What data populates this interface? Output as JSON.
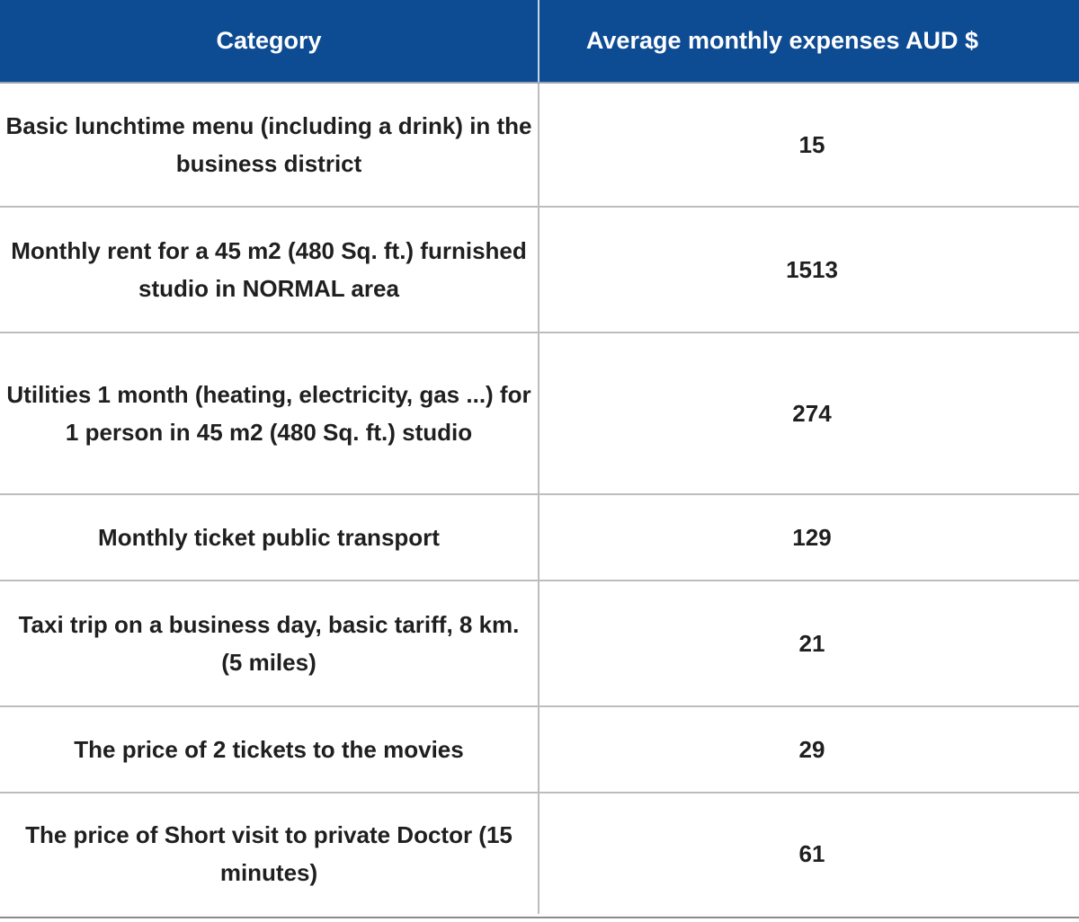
{
  "table": {
    "headers": [
      "Category",
      "Average monthly expenses AUD $"
    ],
    "rows": [
      {
        "category": "Basic lunchtime menu (including a drink) in the business district",
        "value": "15"
      },
      {
        "category": "Monthly rent for a 45 m2 (480 Sq. ft.) furnished studio in NORMAL area",
        "value": "1513"
      },
      {
        "category": "Utilities 1 month (heating, electricity, gas ...) for 1 person in 45 m2 (480 Sq. ft.) studio",
        "value": "274"
      },
      {
        "category": "Monthly ticket public transport",
        "value": "129"
      },
      {
        "category": "Taxi trip on a business day, basic tariff, 8 km. (5 miles)",
        "value": "21"
      },
      {
        "category": "The price of 2 tickets to the movies",
        "value": "29"
      },
      {
        "category": "The price of Short visit to private Doctor (15 minutes)",
        "value": "61"
      }
    ]
  },
  "colors": {
    "header_bg": "#0d4b93",
    "header_text": "#ffffff",
    "body_text": "#1f1f1f",
    "grid": "#bdbdbd"
  }
}
